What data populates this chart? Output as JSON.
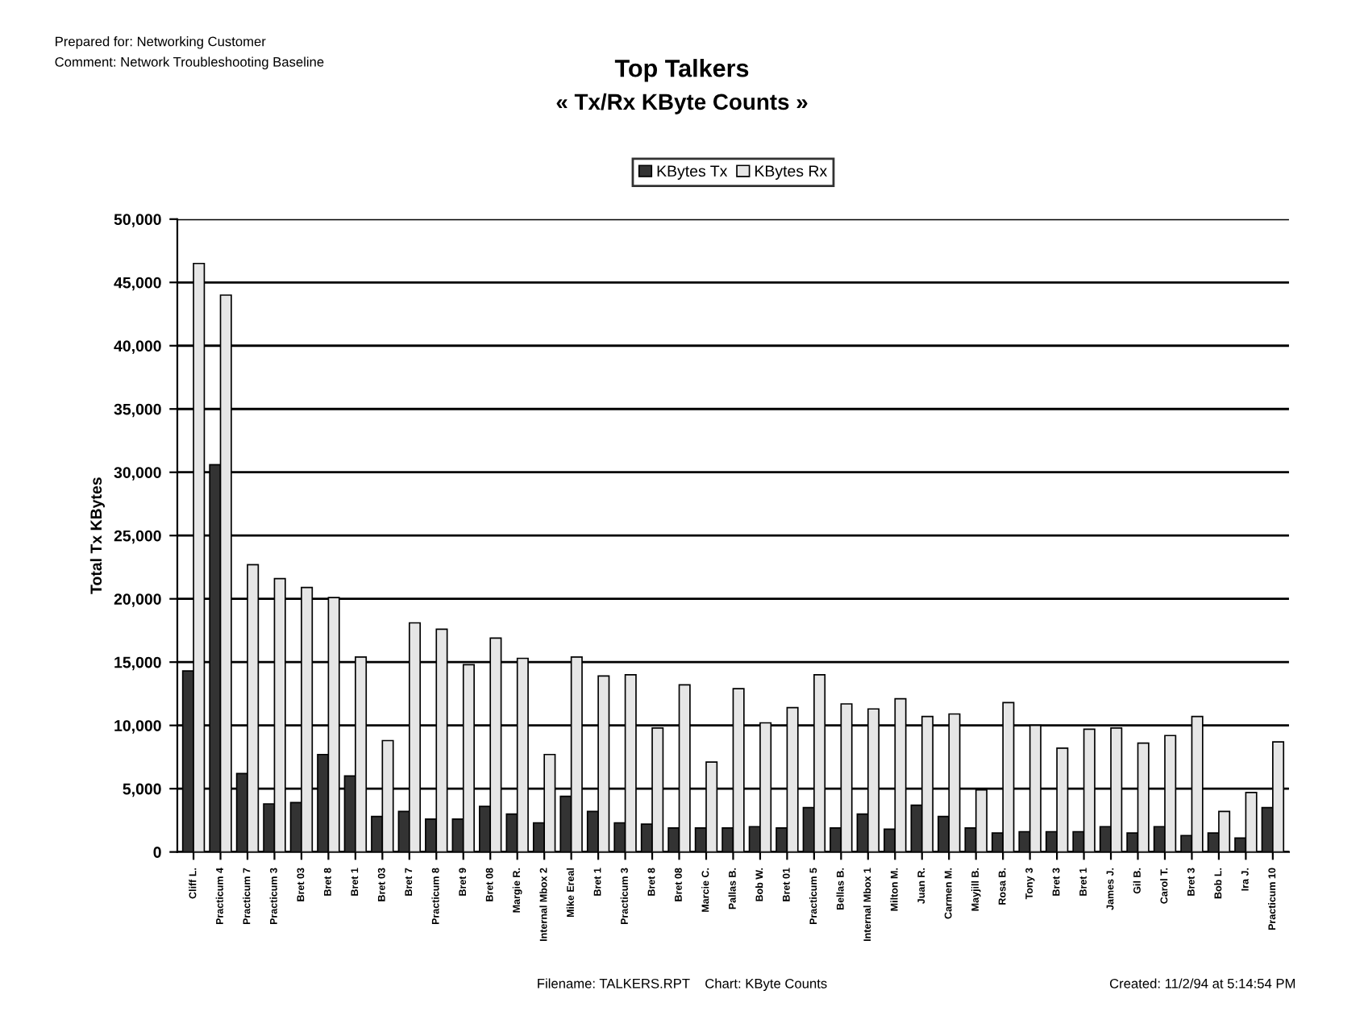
{
  "chart_data": {
    "type": "bar",
    "title": "Top Talkers",
    "subtitle": "« Tx/Rx KByte Counts »",
    "ylabel": "Total Tx KBytes",
    "annotations": [
      "Prepared for: Networking Customer",
      "Comment: Network Troubleshooting Baseline",
      "Filename: TALKERS.RPT    Chart: KByte Counts",
      "Created: 11/2/94 at 5:14:54 PM"
    ],
    "categories": [
      "Cliff L.",
      "Practicum 4",
      "Practicum 7",
      "Practicum 3",
      "Bret 03",
      "Bret 8",
      "Bret 1",
      "Bret 03",
      "Bret 7",
      "Practicum 8",
      "Bret 9",
      "Bret 08",
      "Margie R.",
      "Internal Mbox 2",
      "Mike Ereal",
      "Bret 1",
      "Practicum 3",
      "Bret 8",
      "Bret 08",
      "Marcie C.",
      "Pallas B.",
      "Bob W.",
      "Bret 01",
      "Practicum 5",
      "Bellas B.",
      "Internal Mbox 1",
      "Milton M.",
      "Juan R.",
      "Carmen M.",
      "Mayjill B.",
      "Rosa B.",
      "Tony 3",
      "Bret 3",
      "Bret 1",
      "James J.",
      "Gil B.",
      "Carol T.",
      "Bret 3",
      "Bob L.",
      "Ira J.",
      "Practicum 10"
    ],
    "series": [
      {
        "name": "KBytes Tx",
        "color": "#333333",
        "values": [
          14300,
          30600,
          6200,
          3800,
          3900,
          7700,
          6000,
          2800,
          3200,
          2600,
          2600,
          3600,
          3000,
          2300,
          4400,
          3200,
          2300,
          2200,
          1900,
          1900,
          1900,
          2000,
          1900,
          3500,
          1900,
          3000,
          1800,
          3700,
          2800,
          1900,
          1500,
          1600,
          1600,
          1600,
          2000,
          1500,
          2000,
          1300,
          1500,
          1100,
          3500
        ]
      },
      {
        "name": "KBytes Rx",
        "color": "#e6e6e6",
        "values": [
          46500,
          44000,
          22700,
          21600,
          20900,
          20100,
          15400,
          8800,
          18100,
          17600,
          14800,
          16900,
          15300,
          7700,
          15400,
          13900,
          14000,
          9800,
          13200,
          7100,
          12900,
          10200,
          11400,
          14000,
          11700,
          11300,
          12100,
          10700,
          10900,
          4900,
          11800,
          10000,
          8200,
          9700,
          9800,
          8600,
          9200,
          10700,
          3200,
          4700,
          8700
        ]
      }
    ],
    "ylim": [
      0,
      50000
    ],
    "yticks": [
      0,
      {
        "value": 5000,
        "label": "5,000"
      },
      {
        "value": 10000,
        "label": "10,000"
      },
      {
        "value": 15000,
        "label": "15,000"
      },
      {
        "value": 20000,
        "label": "20,000"
      },
      {
        "value": 25000,
        "label": "25,000"
      },
      {
        "value": 30000,
        "label": "30,000"
      },
      {
        "value": 35000,
        "label": "35,000"
      },
      {
        "value": 40000,
        "label": "40,000"
      },
      {
        "value": 45000,
        "label": "45,000"
      },
      {
        "value": 50000,
        "label": "50,000"
      }
    ],
    "grid": "y",
    "legend": "top"
  }
}
